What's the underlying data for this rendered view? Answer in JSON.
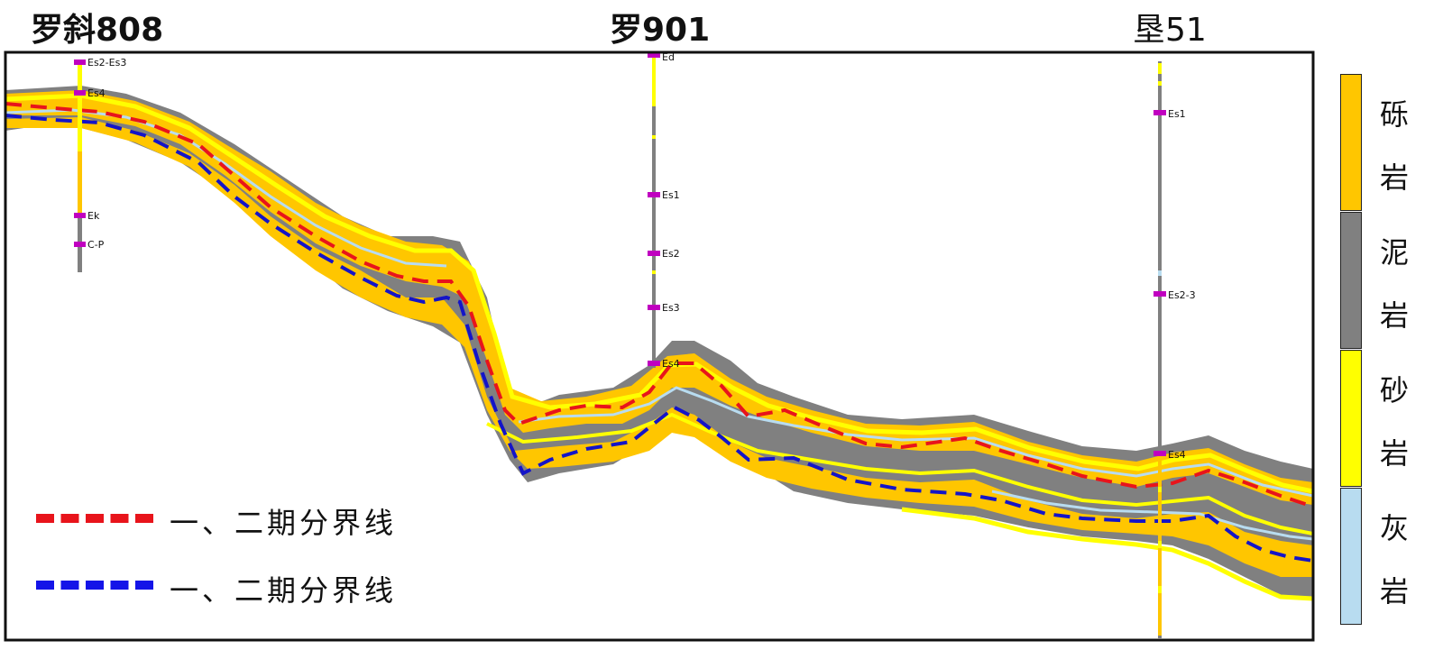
{
  "wells": [
    {
      "name": "罗斜808",
      "markers": [
        "Es2-Es3",
        "Es4",
        "Ek",
        "C-P"
      ]
    },
    {
      "name": "罗901",
      "markers": [
        "Ed",
        "Es1",
        "Es2",
        "Es3",
        "Es4"
      ]
    },
    {
      "name": "垦51",
      "markers": [
        "Es1",
        "Es2-3",
        "Es4"
      ]
    }
  ],
  "legend_lines": [
    {
      "label": "一、二期分界线",
      "color": "#e8141b"
    },
    {
      "label": "一、二期分界线",
      "color": "#1414e8"
    }
  ],
  "lithology_legend": [
    {
      "label_top": "砾",
      "label_bottom": "岩",
      "color": "#ffc600"
    },
    {
      "label_top": "泥",
      "label_bottom": "岩",
      "color": "#808080"
    },
    {
      "label_top": "砂",
      "label_bottom": "岩",
      "color": "#ffff00"
    },
    {
      "label_top": "灰",
      "label_bottom": "岩",
      "color": "#b8dcf0"
    }
  ]
}
